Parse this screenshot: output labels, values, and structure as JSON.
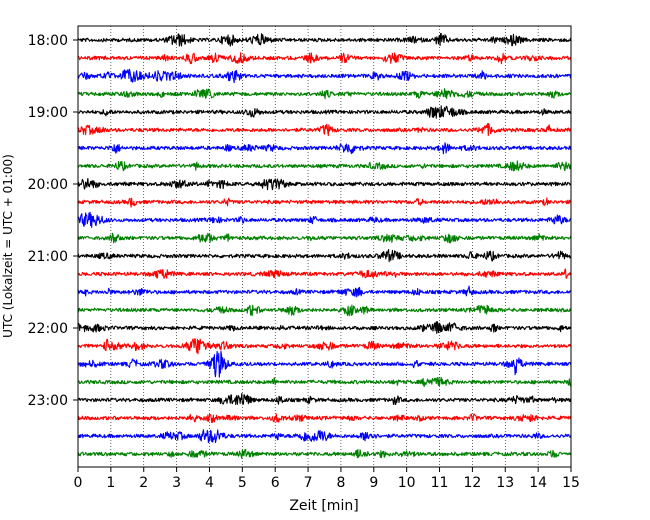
{
  "chart_data": {
    "type": "line",
    "title": "",
    "xlabel": "Zeit  [min]",
    "ylabel": "UTC (Lokalzeit = UTC + 01:00)",
    "xlim": [
      0,
      15
    ],
    "x_ticks": [
      "0",
      "1",
      "2",
      "3",
      "4",
      "5",
      "6",
      "7",
      "8",
      "9",
      "10",
      "11",
      "12",
      "13",
      "14",
      "15"
    ],
    "y_ticks": [
      "18:00",
      "19:00",
      "20:00",
      "21:00",
      "22:00",
      "23:00"
    ],
    "grid": "vertical dotted at each minute",
    "trace_colors": [
      "#000000",
      "#ff0000",
      "#0000ff",
      "#008000"
    ],
    "series": [
      {
        "start": "18:00",
        "color": "#000000"
      },
      {
        "start": "18:15",
        "color": "#ff0000"
      },
      {
        "start": "18:30",
        "color": "#0000ff"
      },
      {
        "start": "18:45",
        "color": "#008000"
      },
      {
        "start": "19:00",
        "color": "#000000"
      },
      {
        "start": "19:15",
        "color": "#ff0000"
      },
      {
        "start": "19:30",
        "color": "#0000ff"
      },
      {
        "start": "19:45",
        "color": "#008000"
      },
      {
        "start": "20:00",
        "color": "#000000"
      },
      {
        "start": "20:15",
        "color": "#ff0000"
      },
      {
        "start": "20:30",
        "color": "#0000ff"
      },
      {
        "start": "20:45",
        "color": "#008000"
      },
      {
        "start": "21:00",
        "color": "#000000"
      },
      {
        "start": "21:15",
        "color": "#ff0000"
      },
      {
        "start": "21:30",
        "color": "#0000ff"
      },
      {
        "start": "21:45",
        "color": "#008000"
      },
      {
        "start": "22:00",
        "color": "#000000"
      },
      {
        "start": "22:15",
        "color": "#ff0000"
      },
      {
        "start": "22:30",
        "color": "#0000ff",
        "event_minute": 13.3
      },
      {
        "start": "22:45",
        "color": "#008000"
      },
      {
        "start": "23:00",
        "color": "#000000"
      },
      {
        "start": "23:15",
        "color": "#ff0000"
      },
      {
        "start": "23:30",
        "color": "#0000ff"
      },
      {
        "start": "23:45",
        "color": "#008000"
      }
    ]
  }
}
